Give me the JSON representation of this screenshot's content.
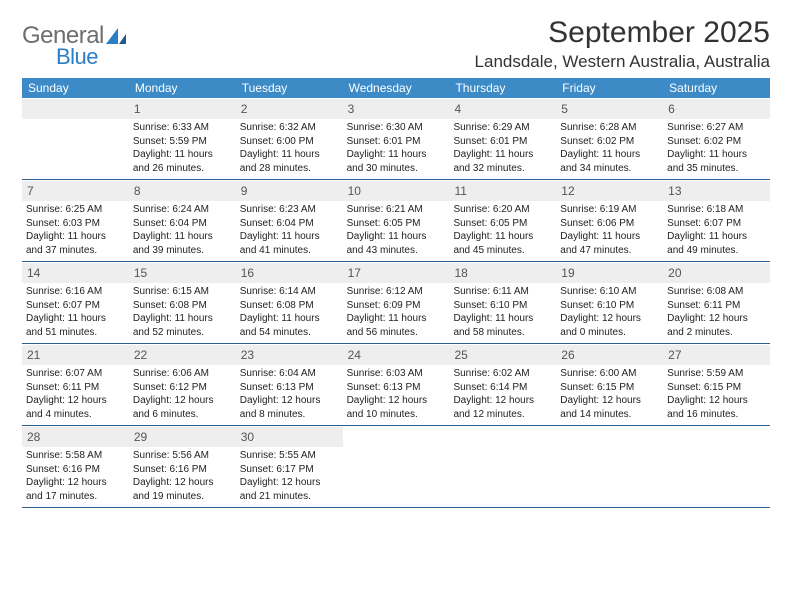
{
  "logo": {
    "general": "General",
    "blue": "Blue"
  },
  "title": "September 2025",
  "location": "Landsdale, Western Australia, Australia",
  "weekdays": [
    "Sunday",
    "Monday",
    "Tuesday",
    "Wednesday",
    "Thursday",
    "Friday",
    "Saturday"
  ],
  "colors": {
    "header_bg": "#3c8bc7",
    "header_text": "#ffffff",
    "daynum_bg": "#eeeeee",
    "border": "#2a5f8f",
    "text": "#222222",
    "logo_gray": "#6e6e6e",
    "logo_blue": "#2a7fc4"
  },
  "weeks": [
    [
      {
        "n": "",
        "empty": true
      },
      {
        "n": "1",
        "sunrise": "Sunrise: 6:33 AM",
        "sunset": "Sunset: 5:59 PM",
        "daylight": "Daylight: 11 hours and 26 minutes."
      },
      {
        "n": "2",
        "sunrise": "Sunrise: 6:32 AM",
        "sunset": "Sunset: 6:00 PM",
        "daylight": "Daylight: 11 hours and 28 minutes."
      },
      {
        "n": "3",
        "sunrise": "Sunrise: 6:30 AM",
        "sunset": "Sunset: 6:01 PM",
        "daylight": "Daylight: 11 hours and 30 minutes."
      },
      {
        "n": "4",
        "sunrise": "Sunrise: 6:29 AM",
        "sunset": "Sunset: 6:01 PM",
        "daylight": "Daylight: 11 hours and 32 minutes."
      },
      {
        "n": "5",
        "sunrise": "Sunrise: 6:28 AM",
        "sunset": "Sunset: 6:02 PM",
        "daylight": "Daylight: 11 hours and 34 minutes."
      },
      {
        "n": "6",
        "sunrise": "Sunrise: 6:27 AM",
        "sunset": "Sunset: 6:02 PM",
        "daylight": "Daylight: 11 hours and 35 minutes."
      }
    ],
    [
      {
        "n": "7",
        "sunrise": "Sunrise: 6:25 AM",
        "sunset": "Sunset: 6:03 PM",
        "daylight": "Daylight: 11 hours and 37 minutes."
      },
      {
        "n": "8",
        "sunrise": "Sunrise: 6:24 AM",
        "sunset": "Sunset: 6:04 PM",
        "daylight": "Daylight: 11 hours and 39 minutes."
      },
      {
        "n": "9",
        "sunrise": "Sunrise: 6:23 AM",
        "sunset": "Sunset: 6:04 PM",
        "daylight": "Daylight: 11 hours and 41 minutes."
      },
      {
        "n": "10",
        "sunrise": "Sunrise: 6:21 AM",
        "sunset": "Sunset: 6:05 PM",
        "daylight": "Daylight: 11 hours and 43 minutes."
      },
      {
        "n": "11",
        "sunrise": "Sunrise: 6:20 AM",
        "sunset": "Sunset: 6:05 PM",
        "daylight": "Daylight: 11 hours and 45 minutes."
      },
      {
        "n": "12",
        "sunrise": "Sunrise: 6:19 AM",
        "sunset": "Sunset: 6:06 PM",
        "daylight": "Daylight: 11 hours and 47 minutes."
      },
      {
        "n": "13",
        "sunrise": "Sunrise: 6:18 AM",
        "sunset": "Sunset: 6:07 PM",
        "daylight": "Daylight: 11 hours and 49 minutes."
      }
    ],
    [
      {
        "n": "14",
        "sunrise": "Sunrise: 6:16 AM",
        "sunset": "Sunset: 6:07 PM",
        "daylight": "Daylight: 11 hours and 51 minutes."
      },
      {
        "n": "15",
        "sunrise": "Sunrise: 6:15 AM",
        "sunset": "Sunset: 6:08 PM",
        "daylight": "Daylight: 11 hours and 52 minutes."
      },
      {
        "n": "16",
        "sunrise": "Sunrise: 6:14 AM",
        "sunset": "Sunset: 6:08 PM",
        "daylight": "Daylight: 11 hours and 54 minutes."
      },
      {
        "n": "17",
        "sunrise": "Sunrise: 6:12 AM",
        "sunset": "Sunset: 6:09 PM",
        "daylight": "Daylight: 11 hours and 56 minutes."
      },
      {
        "n": "18",
        "sunrise": "Sunrise: 6:11 AM",
        "sunset": "Sunset: 6:10 PM",
        "daylight": "Daylight: 11 hours and 58 minutes."
      },
      {
        "n": "19",
        "sunrise": "Sunrise: 6:10 AM",
        "sunset": "Sunset: 6:10 PM",
        "daylight": "Daylight: 12 hours and 0 minutes."
      },
      {
        "n": "20",
        "sunrise": "Sunrise: 6:08 AM",
        "sunset": "Sunset: 6:11 PM",
        "daylight": "Daylight: 12 hours and 2 minutes."
      }
    ],
    [
      {
        "n": "21",
        "sunrise": "Sunrise: 6:07 AM",
        "sunset": "Sunset: 6:11 PM",
        "daylight": "Daylight: 12 hours and 4 minutes."
      },
      {
        "n": "22",
        "sunrise": "Sunrise: 6:06 AM",
        "sunset": "Sunset: 6:12 PM",
        "daylight": "Daylight: 12 hours and 6 minutes."
      },
      {
        "n": "23",
        "sunrise": "Sunrise: 6:04 AM",
        "sunset": "Sunset: 6:13 PM",
        "daylight": "Daylight: 12 hours and 8 minutes."
      },
      {
        "n": "24",
        "sunrise": "Sunrise: 6:03 AM",
        "sunset": "Sunset: 6:13 PM",
        "daylight": "Daylight: 12 hours and 10 minutes."
      },
      {
        "n": "25",
        "sunrise": "Sunrise: 6:02 AM",
        "sunset": "Sunset: 6:14 PM",
        "daylight": "Daylight: 12 hours and 12 minutes."
      },
      {
        "n": "26",
        "sunrise": "Sunrise: 6:00 AM",
        "sunset": "Sunset: 6:15 PM",
        "daylight": "Daylight: 12 hours and 14 minutes."
      },
      {
        "n": "27",
        "sunrise": "Sunrise: 5:59 AM",
        "sunset": "Sunset: 6:15 PM",
        "daylight": "Daylight: 12 hours and 16 minutes."
      }
    ],
    [
      {
        "n": "28",
        "sunrise": "Sunrise: 5:58 AM",
        "sunset": "Sunset: 6:16 PM",
        "daylight": "Daylight: 12 hours and 17 minutes."
      },
      {
        "n": "29",
        "sunrise": "Sunrise: 5:56 AM",
        "sunset": "Sunset: 6:16 PM",
        "daylight": "Daylight: 12 hours and 19 minutes."
      },
      {
        "n": "30",
        "sunrise": "Sunrise: 5:55 AM",
        "sunset": "Sunset: 6:17 PM",
        "daylight": "Daylight: 12 hours and 21 minutes."
      },
      {
        "n": "",
        "empty": true
      },
      {
        "n": "",
        "empty": true
      },
      {
        "n": "",
        "empty": true
      },
      {
        "n": "",
        "empty": true
      }
    ]
  ]
}
